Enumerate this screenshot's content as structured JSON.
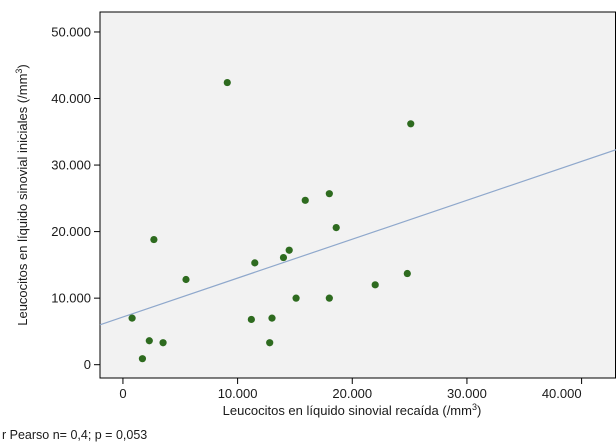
{
  "chart_data": {
    "type": "scatter",
    "xlabel": "Leucocitos en líquido sinovial recaída (/mm",
    "xlabel_sup": "3",
    "xlabel_end": ")",
    "ylabel": "Leucocitos en líquido sinovial iniciales (/mm",
    "ylabel_sup": "3",
    "ylabel_end": ")",
    "xlim": [
      -2000,
      43000
    ],
    "ylim": [
      -2000,
      53000
    ],
    "xticks": [
      0,
      10000,
      20000,
      30000,
      40000
    ],
    "xtick_labels": [
      "0",
      "10.000",
      "20.000",
      "30.000",
      "40.000"
    ],
    "yticks": [
      0,
      10000,
      20000,
      30000,
      40000,
      50000
    ],
    "ytick_labels": [
      "0",
      "10.000",
      "20.000",
      "30.000",
      "40.000",
      "50.000"
    ],
    "grid": false,
    "point_color": "#2e6b1f",
    "line_color": "#8fa8cc",
    "plot_background": "#f2f2f2",
    "points": [
      {
        "x": 800,
        "y": 7000
      },
      {
        "x": 1700,
        "y": 900
      },
      {
        "x": 2300,
        "y": 3600
      },
      {
        "x": 2700,
        "y": 18800
      },
      {
        "x": 3500,
        "y": 3300
      },
      {
        "x": 5500,
        "y": 12800
      },
      {
        "x": 9100,
        "y": 42400
      },
      {
        "x": 11200,
        "y": 6800
      },
      {
        "x": 11500,
        "y": 15300
      },
      {
        "x": 12800,
        "y": 3300
      },
      {
        "x": 13000,
        "y": 7000
      },
      {
        "x": 14000,
        "y": 16100
      },
      {
        "x": 14500,
        "y": 17200
      },
      {
        "x": 15100,
        "y": 10000
      },
      {
        "x": 15900,
        "y": 24700
      },
      {
        "x": 18000,
        "y": 25700
      },
      {
        "x": 18000,
        "y": 10000
      },
      {
        "x": 18600,
        "y": 20600
      },
      {
        "x": 22000,
        "y": 12000
      },
      {
        "x": 24800,
        "y": 13700
      },
      {
        "x": 25100,
        "y": 36200
      }
    ],
    "regression": {
      "x0": -2000,
      "y0": 6000,
      "x1": 43000,
      "y1": 32300
    }
  },
  "caption": "r Pearso n= 0,4; p = 0,053"
}
